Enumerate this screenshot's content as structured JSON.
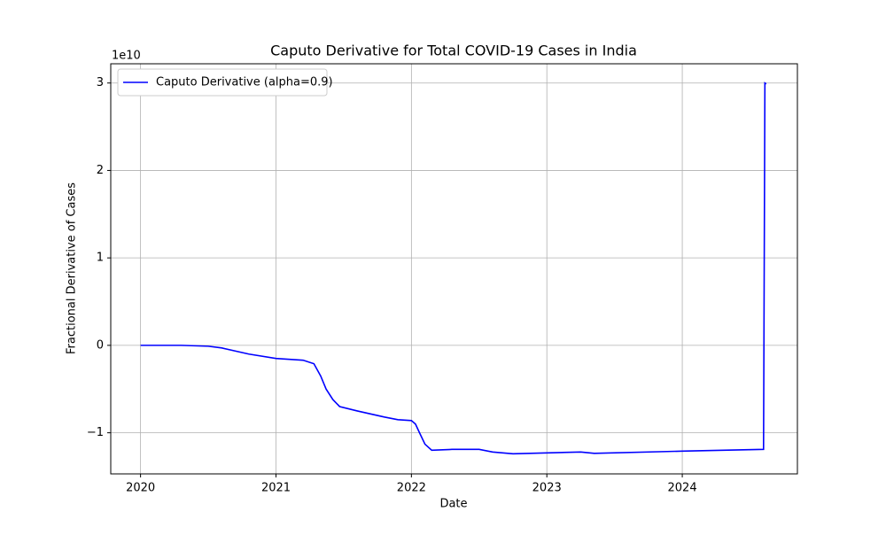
{
  "chart_data": {
    "type": "line",
    "title": "Caputo Derivative for Total COVID-19 Cases in India",
    "xlabel": "Date",
    "ylabel": "Fractional Derivative of Cases",
    "y_offset_label": "1e10",
    "x": [
      2020.0,
      2020.3,
      2020.5,
      2020.6,
      2020.8,
      2021.0,
      2021.2,
      2021.28,
      2021.33,
      2021.37,
      2021.42,
      2021.47,
      2021.6,
      2021.8,
      2021.9,
      2022.0,
      2022.03,
      2022.06,
      2022.1,
      2022.15,
      2022.3,
      2022.5,
      2022.6,
      2022.75,
      2023.0,
      2023.25,
      2023.35,
      2024.0,
      2024.6,
      2024.61,
      2024.62
    ],
    "series": [
      {
        "name": "Caputo Derivative (alpha=0.9)",
        "color": "#0000ff",
        "values": [
          0,
          0,
          -0.01,
          -0.03,
          -0.1,
          -0.15,
          -0.17,
          -0.21,
          -0.35,
          -0.5,
          -0.62,
          -0.7,
          -0.75,
          -0.82,
          -0.85,
          -0.86,
          -0.9,
          -1.0,
          -1.13,
          -1.2,
          -1.19,
          -1.19,
          -1.22,
          -1.24,
          -1.23,
          -1.22,
          -1.235,
          -1.21,
          -1.19,
          3.0,
          2.99
        ]
      }
    ],
    "xlim": [
      2019.78,
      2024.85
    ],
    "xticks": [
      2020,
      2021,
      2022,
      2023,
      2024
    ],
    "ylim": [
      -1.47,
      3.22
    ],
    "yticks": [
      {
        "value": -1,
        "label": "−1"
      },
      0,
      1,
      2,
      3
    ],
    "grid": true,
    "legend": "upper left"
  }
}
